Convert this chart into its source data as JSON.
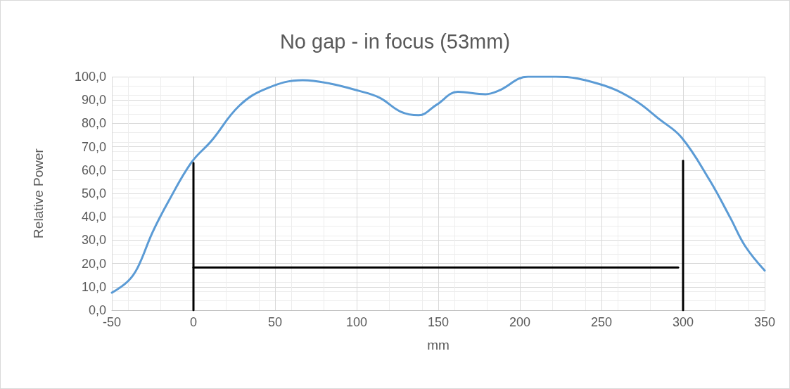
{
  "chart_data": {
    "type": "line",
    "title": "No gap - in focus (53mm)",
    "xlabel": "mm",
    "ylabel": "Relative Power",
    "xlim": [
      -50,
      350
    ],
    "xticks": [
      -50,
      0,
      50,
      100,
      150,
      200,
      250,
      300,
      350
    ],
    "ylim": [
      0,
      100
    ],
    "yticks": [
      {
        "value": 0,
        "label": "0,0"
      },
      {
        "value": 10,
        "label": "10,0"
      },
      {
        "value": 20,
        "label": "20,0"
      },
      {
        "value": 30,
        "label": "30,0"
      },
      {
        "value": 40,
        "label": "40,0"
      },
      {
        "value": 50,
        "label": "50,0"
      },
      {
        "value": 60,
        "label": "60,0"
      },
      {
        "value": 70,
        "label": "70,0"
      },
      {
        "value": 80,
        "label": "80,0"
      },
      {
        "value": 90,
        "label": "90,0"
      },
      {
        "value": 100,
        "label": "100,0"
      }
    ],
    "grid": true,
    "marker": "none",
    "line_style": "solid",
    "series": [
      {
        "color": "#5b9bd5",
        "x": [
          -50,
          -40,
          -34,
          -25,
          -15,
          -1,
          11,
          28,
          45,
          67,
          84,
          101,
          114,
          127,
          138,
          149,
          162,
          179,
          187,
          205,
          222,
          248,
          269,
          286,
          299,
          316,
          329,
          338,
          350
        ],
        "values": [
          7.5,
          12.5,
          18.5,
          33.5,
          47,
          63.5,
          72.5,
          87.5,
          95,
          98.5,
          97,
          94,
          91,
          85,
          83.5,
          88,
          93.5,
          92.5,
          94,
          100,
          100,
          97,
          90.5,
          81.5,
          74,
          56,
          39.5,
          27.5,
          17
        ]
      },
      {
        "color": "#000000",
        "x": [
          0,
          0
        ],
        "values": [
          0,
          63
        ]
      },
      {
        "color": "#000000",
        "x": [
          300,
          300
        ],
        "values": [
          0,
          64
        ]
      },
      {
        "color": "#000000",
        "x": [
          0,
          297
        ],
        "values": [
          18.3,
          18.3
        ]
      }
    ]
  }
}
